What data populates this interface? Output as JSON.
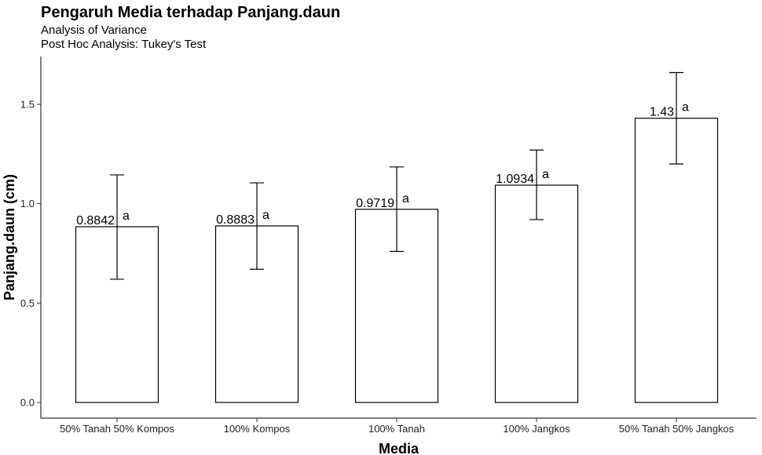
{
  "chart_data": {
    "type": "bar",
    "title": "Pengaruh Media terhadap Panjang.daun",
    "subtitle_lines": [
      "Analysis of Variance",
      "Post Hoc Analysis: Tukey's Test"
    ],
    "xlabel": "Media",
    "ylabel": "Panjang.daun (cm)",
    "categories": [
      "50% Tanah 50% Kompos",
      "100% Kompos",
      "100% Tanah",
      "100% Jangkos",
      "50% Tanah 50% Jangkos"
    ],
    "values": [
      0.8842,
      0.8883,
      0.9719,
      1.0934,
      1.43
    ],
    "value_labels": [
      "0.8842",
      "0.8883",
      "0.9719",
      "1.0934",
      "1.43"
    ],
    "error_low": [
      0.62,
      0.67,
      0.76,
      0.92,
      1.2
    ],
    "error_high": [
      1.145,
      1.105,
      1.185,
      1.27,
      1.66
    ],
    "group_letters": [
      "a",
      "a",
      "a",
      "a",
      "a"
    ],
    "yticks": [
      0.0,
      0.5,
      1.0,
      1.5
    ],
    "ytick_labels": [
      "0.0",
      "0.5",
      "1.0",
      "1.5"
    ],
    "ylim": [
      0,
      1.7
    ],
    "bar_fill": "#ffffff",
    "bar_stroke": "#000000",
    "grid": false
  }
}
